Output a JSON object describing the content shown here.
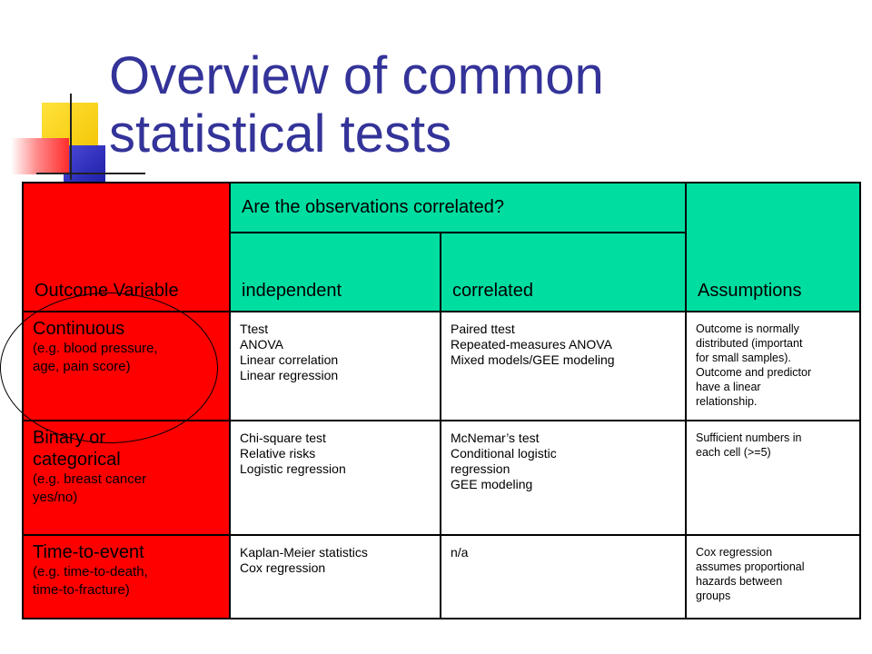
{
  "slide": {
    "title_line1": "Overview of common",
    "title_line2": "statistical tests"
  },
  "table": {
    "header": {
      "outcome": "Outcome Variable",
      "correlated_question": "Are the observations correlated?",
      "independent": "independent",
      "correlated": "correlated",
      "assumptions": "Assumptions"
    },
    "rows": [
      {
        "title_lines": [
          "Continuous"
        ],
        "example_lines": [
          "(e.g. blood pressure,",
          "age, pain score)"
        ],
        "independent": [
          "Ttest",
          "ANOVA",
          "Linear correlation",
          "Linear regression"
        ],
        "correlated": [
          "Paired ttest",
          "Repeated-measures ANOVA",
          "Mixed models/GEE modeling"
        ],
        "assumptions": [
          "Outcome is normally",
          "distributed (important",
          "for small samples).",
          "Outcome and predictor",
          "have a linear",
          "relationship."
        ]
      },
      {
        "title_lines": [
          "Binary or",
          "categorical"
        ],
        "example_lines": [
          "(e.g. breast cancer",
          "yes/no)"
        ],
        "independent": [
          "Chi-square test",
          "Relative risks",
          "Logistic regression"
        ],
        "correlated": [
          "McNemar’s test",
          "Conditional logistic",
          "regression",
          "GEE modeling"
        ],
        "assumptions": [
          "Sufficient numbers in",
          "each cell (>=5)"
        ]
      },
      {
        "title_lines": [
          "Time-to-event"
        ],
        "example_lines": [
          "(e.g. time-to-death,",
          "time-to-fracture)"
        ],
        "independent": [
          "Kaplan-Meier statistics",
          "Cox regression"
        ],
        "correlated": [
          "n/a"
        ],
        "assumptions": [
          "Cox regression",
          "assumes proportional",
          "hazards between",
          "groups"
        ]
      }
    ]
  },
  "colors": {
    "title": "#333399",
    "outcome_column": "#ff0000",
    "header_fill": "#00dda0"
  }
}
